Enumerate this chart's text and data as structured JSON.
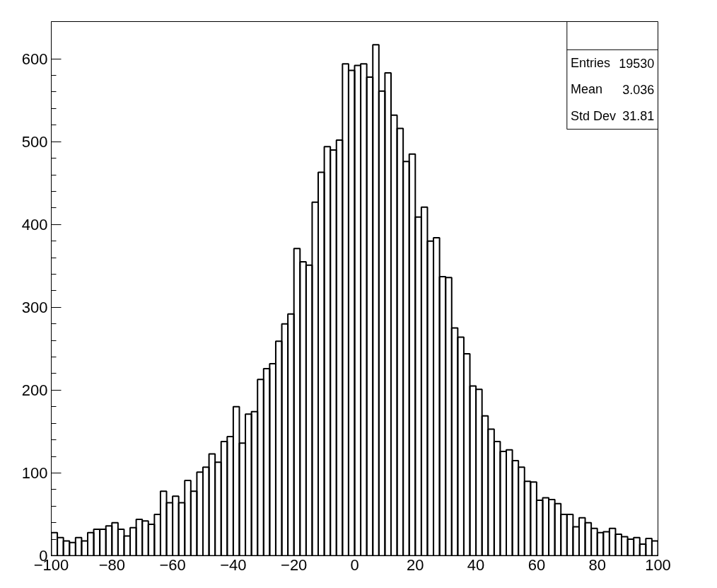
{
  "chart_data": {
    "type": "histogram",
    "bins": [
      -100,
      -98,
      -96,
      -94,
      -92,
      -90,
      -88,
      -86,
      -84,
      -82,
      -80,
      -78,
      -76,
      -74,
      -72,
      -70,
      -68,
      -66,
      -64,
      -62,
      -60,
      -58,
      -56,
      -54,
      -52,
      -50,
      -48,
      -46,
      -44,
      -42,
      -40,
      -38,
      -36,
      -34,
      -32,
      -30,
      -28,
      -26,
      -24,
      -22,
      -20,
      -18,
      -16,
      -14,
      -12,
      -10,
      -8,
      -6,
      -4,
      -2,
      0,
      2,
      4,
      6,
      8,
      10,
      12,
      14,
      16,
      18,
      20,
      22,
      24,
      26,
      28,
      30,
      32,
      34,
      36,
      38,
      40,
      42,
      44,
      46,
      48,
      50,
      52,
      54,
      56,
      58,
      60,
      62,
      64,
      66,
      68,
      70,
      72,
      74,
      76,
      78,
      80,
      82,
      84,
      86,
      88,
      90,
      92,
      94,
      96,
      98,
      100
    ],
    "values": [
      28,
      22,
      18,
      16,
      22,
      18,
      28,
      32,
      32,
      36,
      40,
      32,
      24,
      34,
      44,
      42,
      38,
      50,
      78,
      64,
      72,
      64,
      91,
      78,
      101,
      107,
      123,
      113,
      138,
      144,
      180,
      136,
      171,
      174,
      213,
      226,
      232,
      259,
      280,
      292,
      371,
      355,
      351,
      427,
      463,
      494,
      490,
      502,
      594,
      586,
      592,
      594,
      578,
      617,
      561,
      583,
      532,
      516,
      476,
      485,
      409,
      421,
      380,
      384,
      337,
      336,
      275,
      264,
      244,
      205,
      201,
      169,
      153,
      138,
      126,
      128,
      115,
      107,
      90,
      89,
      67,
      70,
      68,
      63,
      50,
      50,
      35,
      46,
      40,
      33,
      28,
      29,
      33,
      26,
      23,
      20,
      22,
      14,
      21,
      18
    ],
    "color": "#000000",
    "xlim": [
      -100,
      100
    ],
    "ylim": [
      0,
      645
    ],
    "xticks": [
      -100,
      -80,
      -60,
      -40,
      -20,
      0,
      20,
      40,
      60,
      80,
      100
    ],
    "yticks": [
      0,
      100,
      200,
      300,
      400,
      500,
      600
    ],
    "grid": false,
    "annotations": [
      "Entries",
      "19530",
      "Mean",
      "3.036",
      "Std Dev",
      "31.81"
    ]
  }
}
